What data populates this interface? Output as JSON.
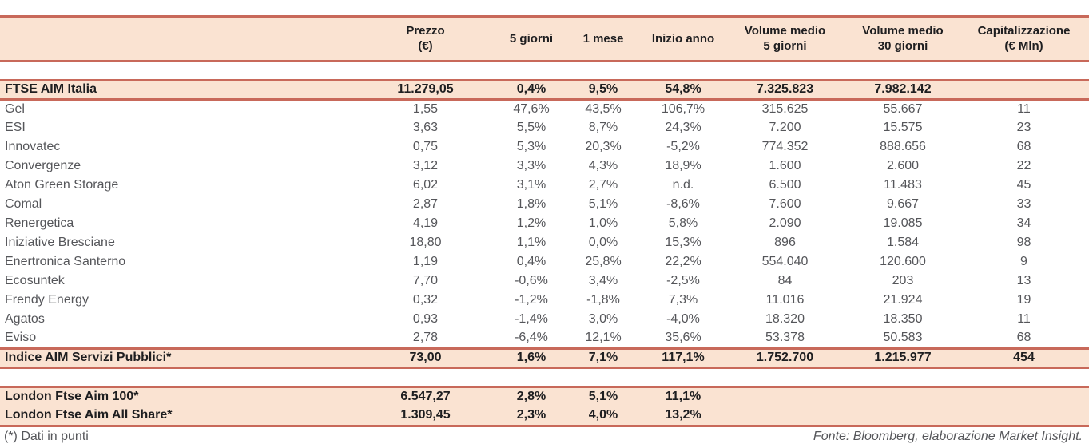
{
  "colors": {
    "accent_line": "#c8695a",
    "band_fill": "#fae3d2",
    "text_dark": "#1e1e20",
    "text_gray": "#55565a"
  },
  "footer": {
    "left": "(*) Dati in punti",
    "right": "Fonte: Bloomberg, elaborazione Market Insight."
  },
  "chart_data": {
    "type": "table",
    "title": "",
    "columns": [
      {
        "label": "",
        "l1": "",
        "l2": ""
      },
      {
        "label": "Prezzo (€)",
        "l1": "Prezzo",
        "l2": "(€)"
      },
      {
        "label": "5 giorni",
        "l1": "5 giorni",
        "l2": ""
      },
      {
        "label": "1 mese",
        "l1": "1 mese",
        "l2": ""
      },
      {
        "label": "Inizio anno",
        "l1": "Inizio anno",
        "l2": ""
      },
      {
        "label": "Volume medio 5 giorni",
        "l1": "Volume medio",
        "l2": "5 giorni"
      },
      {
        "label": "Volume medio 30 giorni",
        "l1": "Volume medio",
        "l2": "30 giorni"
      },
      {
        "label": "Capitalizzazione (€ Mln)",
        "l1": "Capitalizzazione",
        "l2": "(€ Mln)"
      }
    ],
    "rows": [
      {
        "name": "FTSE AIM Italia",
        "style": "index",
        "borders": "both",
        "gap_before": true,
        "values": [
          "11.279,05",
          "0,4%",
          "9,5%",
          "54,8%",
          "7.325.823",
          "7.982.142",
          ""
        ]
      },
      {
        "name": "Gel",
        "style": "stock",
        "borders": "none",
        "gap_before": false,
        "values": [
          "1,55",
          "47,6%",
          "43,5%",
          "106,7%",
          "315.625",
          "55.667",
          "11"
        ]
      },
      {
        "name": "ESI",
        "style": "stock",
        "borders": "none",
        "gap_before": false,
        "values": [
          "3,63",
          "5,5%",
          "8,7%",
          "24,3%",
          "7.200",
          "15.575",
          "23"
        ]
      },
      {
        "name": "Innovatec",
        "style": "stock",
        "borders": "none",
        "gap_before": false,
        "values": [
          "0,75",
          "5,3%",
          "20,3%",
          "-5,2%",
          "774.352",
          "888.656",
          "68"
        ]
      },
      {
        "name": "Convergenze",
        "style": "stock",
        "borders": "none",
        "gap_before": false,
        "values": [
          "3,12",
          "3,3%",
          "4,3%",
          "18,9%",
          "1.600",
          "2.600",
          "22"
        ]
      },
      {
        "name": "Aton Green Storage",
        "style": "stock",
        "borders": "none",
        "gap_before": false,
        "values": [
          "6,02",
          "3,1%",
          "2,7%",
          "n.d.",
          "6.500",
          "11.483",
          "45"
        ]
      },
      {
        "name": "Comal",
        "style": "stock",
        "borders": "none",
        "gap_before": false,
        "values": [
          "2,87",
          "1,8%",
          "5,1%",
          "-8,6%",
          "7.600",
          "9.667",
          "33"
        ]
      },
      {
        "name": "Renergetica",
        "style": "stock",
        "borders": "none",
        "gap_before": false,
        "values": [
          "4,19",
          "1,2%",
          "1,0%",
          "5,8%",
          "2.090",
          "19.085",
          "34"
        ]
      },
      {
        "name": "Iniziative Bresciane",
        "style": "stock",
        "borders": "none",
        "gap_before": false,
        "values": [
          "18,80",
          "1,1%",
          "0,0%",
          "15,3%",
          "896",
          "1.584",
          "98"
        ]
      },
      {
        "name": "Enertronica Santerno",
        "style": "stock",
        "borders": "none",
        "gap_before": false,
        "values": [
          "1,19",
          "0,4%",
          "25,8%",
          "22,2%",
          "554.040",
          "120.600",
          "9"
        ]
      },
      {
        "name": "Ecosuntek",
        "style": "stock",
        "borders": "none",
        "gap_before": false,
        "values": [
          "7,70",
          "-0,6%",
          "3,4%",
          "-2,5%",
          "84",
          "203",
          "13"
        ]
      },
      {
        "name": "Frendy Energy",
        "style": "stock",
        "borders": "none",
        "gap_before": false,
        "values": [
          "0,32",
          "-1,2%",
          "-1,8%",
          "7,3%",
          "11.016",
          "21.924",
          "19"
        ]
      },
      {
        "name": "Agatos",
        "style": "stock",
        "borders": "none",
        "gap_before": false,
        "values": [
          "0,93",
          "-1,4%",
          "3,0%",
          "-4,0%",
          "18.320",
          "18.350",
          "11"
        ]
      },
      {
        "name": "Eviso",
        "style": "stock",
        "borders": "none",
        "gap_before": false,
        "values": [
          "2,78",
          "-6,4%",
          "12,1%",
          "35,6%",
          "53.378",
          "50.583",
          "68"
        ]
      },
      {
        "name": "Indice AIM Servizi Pubblici*",
        "style": "index",
        "borders": "both",
        "gap_before": false,
        "values": [
          "73,00",
          "1,6%",
          "7,1%",
          "117,1%",
          "1.752.700",
          "1.215.977",
          "454"
        ]
      },
      {
        "name": "London Ftse Aim 100*",
        "style": "index",
        "borders": "top",
        "gap_before": true,
        "values": [
          "6.547,27",
          "2,8%",
          "5,1%",
          "11,1%",
          "",
          "",
          ""
        ]
      },
      {
        "name": "London Ftse Aim All Share*",
        "style": "index",
        "borders": "none",
        "gap_before": false,
        "values": [
          "1.309,45",
          "2,3%",
          "4,0%",
          "13,2%",
          "",
          "",
          ""
        ]
      }
    ],
    "footnote": "(*) Dati in punti",
    "source": "Fonte: Bloomberg, elaborazione Market Insight."
  }
}
